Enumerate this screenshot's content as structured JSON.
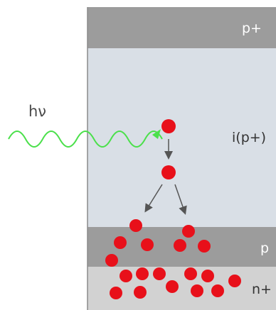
{
  "diagram": {
    "photon": {
      "label": "hν",
      "color": "#4be04b"
    },
    "layers": [
      {
        "name": "p+",
        "color": "#9c9c9c",
        "label_color": "#ffffff"
      },
      {
        "name": "i(p+)",
        "color": "#d9dfe6",
        "label_color": "#333333"
      },
      {
        "name": "p",
        "color": "#9c9c9c",
        "label_color": "#ffffff"
      },
      {
        "name": "n+",
        "color": "#d2d2d2",
        "label_color": "#333333"
      }
    ],
    "carrier_color": "#e8101a",
    "arrow_color": "#555555"
  }
}
